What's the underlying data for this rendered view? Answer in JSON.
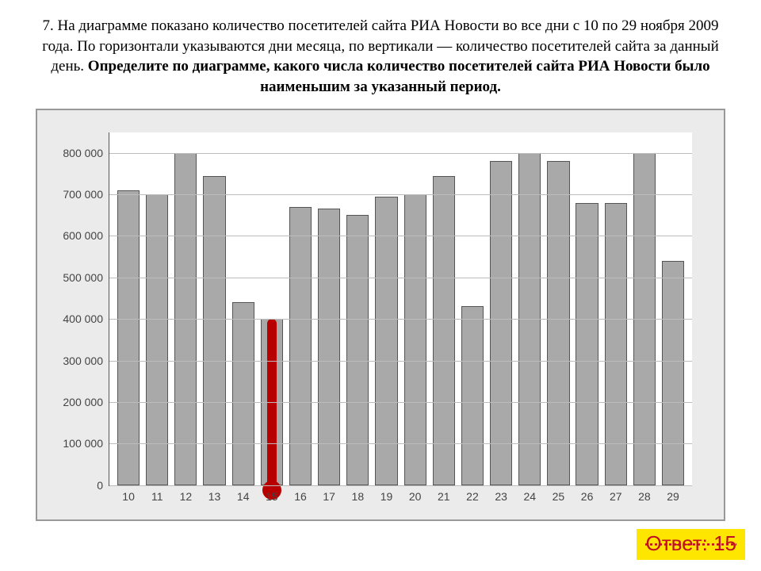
{
  "question": {
    "prefix": "7. На диаграмме показано количество посетителей сайта РИА Новости во все дни с 10 по 29 ноября 2009 года. По горизонтали указываются дни месяца, по вертикали — количество посетителей сайта за данный день. ",
    "bold": "Определите по диаграмме, какого числа количество посетителей сайта РИА Новости было наименьшим за указанный период."
  },
  "chart": {
    "type": "bar",
    "ylim": [
      0,
      850000
    ],
    "yticks": [
      0,
      100000,
      200000,
      300000,
      400000,
      500000,
      600000,
      700000,
      800000
    ],
    "ytick_labels": [
      "0",
      "100 000",
      "200 000",
      "300 000",
      "400 000",
      "500 000",
      "600 000",
      "700 000",
      "800 000"
    ],
    "categories": [
      "10",
      "11",
      "12",
      "13",
      "14",
      "15",
      "16",
      "17",
      "18",
      "19",
      "20",
      "21",
      "22",
      "23",
      "24",
      "25",
      "26",
      "27",
      "28",
      "29"
    ],
    "values": [
      710000,
      700000,
      800000,
      745000,
      440000,
      400000,
      670000,
      665000,
      650000,
      695000,
      700000,
      745000,
      430000,
      780000,
      800000,
      780000,
      680000,
      680000,
      800000,
      540000
    ],
    "bar_color": "#a9a9a9",
    "bar_border": "#555555",
    "grid_color": "#bcbcbc",
    "background_color": "#ebebeb",
    "plot_background": "#ffffff",
    "axis_font": "Arial",
    "axis_fontsize": 14,
    "highlight_index": 5,
    "highlight_color": "#b80000"
  },
  "answer": {
    "label": "Ответ: 15",
    "bg": "#ffe600",
    "color": "#c01020"
  }
}
